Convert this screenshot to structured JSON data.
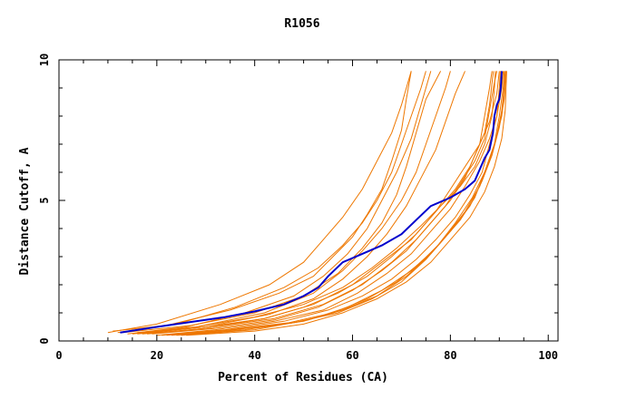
{
  "chart_data": {
    "type": "line",
    "title": "R1056",
    "xlabel": "Percent of Residues (CA)",
    "ylabel": "Distance Cutoff, A",
    "xlim": [
      0,
      102
    ],
    "ylim": [
      0,
      10
    ],
    "xticks": [
      0,
      20,
      40,
      60,
      80,
      100
    ],
    "yticks": [
      0,
      5,
      10
    ],
    "grid": false,
    "legend": "none",
    "colors": {
      "highlight": "#0000cc",
      "others": "#ee7700",
      "axis": "#000000"
    },
    "highlight_series": {
      "values": [
        [
          12.5,
          0.3
        ],
        [
          20,
          0.5
        ],
        [
          28,
          0.7
        ],
        [
          34,
          0.85
        ],
        [
          40,
          1.05
        ],
        [
          46,
          1.3
        ],
        [
          50,
          1.6
        ],
        [
          53,
          1.9
        ],
        [
          55,
          2.3
        ],
        [
          58,
          2.8
        ],
        [
          62,
          3.1
        ],
        [
          66,
          3.4
        ],
        [
          70,
          3.8
        ],
        [
          73,
          4.3
        ],
        [
          76,
          4.8
        ],
        [
          80,
          5.1
        ],
        [
          83,
          5.4
        ],
        [
          85,
          5.7
        ],
        [
          86,
          6.1
        ],
        [
          87,
          6.5
        ],
        [
          88,
          6.8
        ],
        [
          88.7,
          7.4
        ],
        [
          89,
          8.0
        ],
        [
          89.5,
          8.4
        ],
        [
          90,
          8.6
        ],
        [
          90.3,
          9.0
        ],
        [
          90.5,
          9.6
        ]
      ]
    },
    "other_series": [
      {
        "values": [
          [
            11,
            0.35
          ],
          [
            22,
            0.55
          ],
          [
            35,
            1.1
          ],
          [
            45,
            1.7
          ],
          [
            52,
            2.3
          ],
          [
            56,
            3.0
          ],
          [
            60,
            3.7
          ],
          [
            63,
            4.5
          ],
          [
            66,
            5.4
          ],
          [
            68,
            6.4
          ],
          [
            70,
            7.5
          ],
          [
            71,
            8.6
          ],
          [
            72,
            9.6
          ]
        ]
      },
      {
        "values": [
          [
            10,
            0.3
          ],
          [
            20,
            0.6
          ],
          [
            33,
            1.3
          ],
          [
            43,
            2.0
          ],
          [
            50,
            2.8
          ],
          [
            54,
            3.6
          ],
          [
            58,
            4.4
          ],
          [
            62,
            5.4
          ],
          [
            65,
            6.4
          ],
          [
            68,
            7.4
          ],
          [
            70,
            8.4
          ],
          [
            72,
            9.6
          ]
        ]
      },
      {
        "values": [
          [
            12,
            0.3
          ],
          [
            24,
            0.6
          ],
          [
            36,
            1.2
          ],
          [
            46,
            1.9
          ],
          [
            53,
            2.6
          ],
          [
            58,
            3.4
          ],
          [
            62,
            4.2
          ],
          [
            65,
            5.0
          ],
          [
            68,
            6.0
          ],
          [
            70,
            7.0
          ],
          [
            72,
            8.0
          ],
          [
            74,
            9.0
          ],
          [
            75,
            9.6
          ]
        ]
      },
      {
        "values": [
          [
            14,
            0.25
          ],
          [
            26,
            0.5
          ],
          [
            38,
            1.0
          ],
          [
            48,
            1.6
          ],
          [
            54,
            2.3
          ],
          [
            59,
            3.1
          ],
          [
            63,
            4.0
          ],
          [
            66,
            5.0
          ],
          [
            69,
            6.0
          ],
          [
            72,
            7.2
          ],
          [
            74,
            8.4
          ],
          [
            76,
            9.6
          ]
        ]
      },
      {
        "values": [
          [
            13,
            0.3
          ],
          [
            27,
            0.55
          ],
          [
            40,
            1.0
          ],
          [
            50,
            1.6
          ],
          [
            57,
            2.4
          ],
          [
            62,
            3.3
          ],
          [
            66,
            4.2
          ],
          [
            69,
            5.2
          ],
          [
            71,
            6.2
          ],
          [
            73,
            7.4
          ],
          [
            75,
            8.6
          ],
          [
            78,
            9.6
          ]
        ]
      },
      {
        "values": [
          [
            15,
            0.25
          ],
          [
            28,
            0.5
          ],
          [
            42,
            1.0
          ],
          [
            52,
            1.7
          ],
          [
            58,
            2.5
          ],
          [
            62,
            3.2
          ],
          [
            66,
            4.0
          ],
          [
            70,
            5.0
          ],
          [
            73,
            6.0
          ],
          [
            75,
            7.0
          ],
          [
            77,
            8.0
          ],
          [
            79,
            9.0
          ],
          [
            80,
            9.6
          ]
        ]
      },
      {
        "values": [
          [
            16,
            0.25
          ],
          [
            30,
            0.5
          ],
          [
            43,
            0.95
          ],
          [
            52,
            1.5
          ],
          [
            58,
            2.2
          ],
          [
            63,
            3.0
          ],
          [
            67,
            3.8
          ],
          [
            71,
            4.8
          ],
          [
            74,
            5.8
          ],
          [
            77,
            6.8
          ],
          [
            79,
            7.8
          ],
          [
            81,
            8.8
          ],
          [
            83,
            9.6
          ]
        ]
      },
      {
        "values": [
          [
            18,
            0.25
          ],
          [
            30,
            0.45
          ],
          [
            42,
            0.8
          ],
          [
            52,
            1.3
          ],
          [
            60,
            2.0
          ],
          [
            66,
            2.8
          ],
          [
            72,
            3.6
          ],
          [
            77,
            4.6
          ],
          [
            81,
            5.4
          ],
          [
            84,
            6.2
          ],
          [
            86,
            7.0
          ],
          [
            87,
            8.0
          ],
          [
            88,
            9.0
          ],
          [
            88.5,
            9.6
          ]
        ]
      },
      {
        "values": [
          [
            17,
            0.25
          ],
          [
            30,
            0.45
          ],
          [
            44,
            0.8
          ],
          [
            54,
            1.3
          ],
          [
            62,
            2.0
          ],
          [
            68,
            2.8
          ],
          [
            73,
            3.6
          ],
          [
            77,
            4.4
          ],
          [
            80,
            5.0
          ],
          [
            83,
            5.8
          ],
          [
            85,
            6.6
          ],
          [
            87,
            7.4
          ],
          [
            88,
            8.4
          ],
          [
            88.8,
            9.6
          ]
        ]
      },
      {
        "values": [
          [
            16,
            0.3
          ],
          [
            28,
            0.5
          ],
          [
            40,
            0.85
          ],
          [
            50,
            1.3
          ],
          [
            58,
            1.9
          ],
          [
            64,
            2.6
          ],
          [
            69,
            3.3
          ],
          [
            74,
            4.1
          ],
          [
            78,
            4.8
          ],
          [
            82,
            5.5
          ],
          [
            85,
            6.2
          ],
          [
            87,
            7.0
          ],
          [
            88.5,
            8.0
          ],
          [
            89,
            9.0
          ],
          [
            89.2,
            9.6
          ]
        ]
      },
      {
        "values": [
          [
            19,
            0.25
          ],
          [
            32,
            0.45
          ],
          [
            44,
            0.75
          ],
          [
            53,
            1.2
          ],
          [
            60,
            1.8
          ],
          [
            66,
            2.5
          ],
          [
            71,
            3.2
          ],
          [
            75,
            4.0
          ],
          [
            79,
            4.8
          ],
          [
            82,
            5.6
          ],
          [
            85,
            6.4
          ],
          [
            87,
            7.2
          ],
          [
            88,
            8.2
          ],
          [
            89,
            9.2
          ],
          [
            89.5,
            9.6
          ]
        ]
      },
      {
        "values": [
          [
            18,
            0.3
          ],
          [
            30,
            0.5
          ],
          [
            42,
            0.8
          ],
          [
            50,
            1.2
          ],
          [
            57,
            1.7
          ],
          [
            63,
            2.3
          ],
          [
            68,
            3.0
          ],
          [
            73,
            3.8
          ],
          [
            77,
            4.6
          ],
          [
            80,
            5.4
          ],
          [
            83,
            6.2
          ],
          [
            86,
            7.0
          ],
          [
            88,
            7.8
          ],
          [
            89.5,
            8.8
          ],
          [
            90,
            9.6
          ]
        ]
      },
      {
        "values": [
          [
            20,
            0.2
          ],
          [
            32,
            0.4
          ],
          [
            44,
            0.7
          ],
          [
            54,
            1.1
          ],
          [
            61,
            1.7
          ],
          [
            67,
            2.4
          ],
          [
            72,
            3.1
          ],
          [
            76,
            3.9
          ],
          [
            80,
            4.7
          ],
          [
            83,
            5.5
          ],
          [
            86,
            6.4
          ],
          [
            88,
            7.2
          ],
          [
            89.5,
            8.0
          ],
          [
            90,
            9.0
          ],
          [
            90.2,
            9.6
          ]
        ]
      },
      {
        "values": [
          [
            21,
            0.2
          ],
          [
            34,
            0.4
          ],
          [
            46,
            0.7
          ],
          [
            55,
            1.1
          ],
          [
            62,
            1.6
          ],
          [
            68,
            2.2
          ],
          [
            73,
            2.9
          ],
          [
            77,
            3.6
          ],
          [
            81,
            4.4
          ],
          [
            84,
            5.2
          ],
          [
            86.5,
            6.0
          ],
          [
            88,
            7.0
          ],
          [
            89.5,
            8.0
          ],
          [
            90.5,
            9.0
          ],
          [
            90.8,
            9.6
          ]
        ]
      },
      {
        "values": [
          [
            22,
            0.2
          ],
          [
            35,
            0.4
          ],
          [
            47,
            0.65
          ],
          [
            56,
            1.0
          ],
          [
            63,
            1.5
          ],
          [
            69,
            2.1
          ],
          [
            74,
            2.8
          ],
          [
            78,
            3.5
          ],
          [
            82,
            4.3
          ],
          [
            85,
            5.1
          ],
          [
            87,
            6.0
          ],
          [
            89,
            7.0
          ],
          [
            90,
            8.0
          ],
          [
            90.8,
            9.0
          ],
          [
            91,
            9.6
          ]
        ]
      },
      {
        "values": [
          [
            23,
            0.2
          ],
          [
            36,
            0.4
          ],
          [
            48,
            0.65
          ],
          [
            57,
            1.0
          ],
          [
            64,
            1.5
          ],
          [
            70,
            2.1
          ],
          [
            75,
            2.9
          ],
          [
            79,
            3.7
          ],
          [
            83,
            4.6
          ],
          [
            86,
            5.5
          ],
          [
            88,
            6.4
          ],
          [
            89.5,
            7.3
          ],
          [
            90.5,
            8.2
          ],
          [
            91,
            9.0
          ],
          [
            91.2,
            9.6
          ]
        ]
      },
      {
        "values": [
          [
            24,
            0.2
          ],
          [
            38,
            0.4
          ],
          [
            50,
            0.7
          ],
          [
            58,
            1.1
          ],
          [
            65,
            1.6
          ],
          [
            71,
            2.3
          ],
          [
            76,
            3.1
          ],
          [
            80,
            3.9
          ],
          [
            84,
            4.8
          ],
          [
            86.5,
            5.7
          ],
          [
            88.5,
            6.6
          ],
          [
            90,
            7.6
          ],
          [
            91,
            8.6
          ],
          [
            91.4,
            9.6
          ]
        ]
      },
      {
        "values": [
          [
            25,
            0.2
          ],
          [
            40,
            0.4
          ],
          [
            51,
            0.75
          ],
          [
            59,
            1.2
          ],
          [
            66,
            1.8
          ],
          [
            72,
            2.5
          ],
          [
            77,
            3.3
          ],
          [
            81,
            4.2
          ],
          [
            84.5,
            5.1
          ],
          [
            87,
            6.0
          ],
          [
            89,
            7.0
          ],
          [
            90.5,
            8.0
          ],
          [
            91,
            8.8
          ],
          [
            91.3,
            9.6
          ]
        ]
      },
      {
        "values": [
          [
            26,
            0.2
          ],
          [
            40,
            0.35
          ],
          [
            50,
            0.6
          ],
          [
            58,
            1.0
          ],
          [
            65,
            1.5
          ],
          [
            71,
            2.1
          ],
          [
            76,
            2.8
          ],
          [
            80,
            3.6
          ],
          [
            84,
            4.4
          ],
          [
            87,
            5.3
          ],
          [
            89,
            6.2
          ],
          [
            90.5,
            7.2
          ],
          [
            91.2,
            8.2
          ],
          [
            91.5,
            9.6
          ]
        ]
      }
    ]
  }
}
